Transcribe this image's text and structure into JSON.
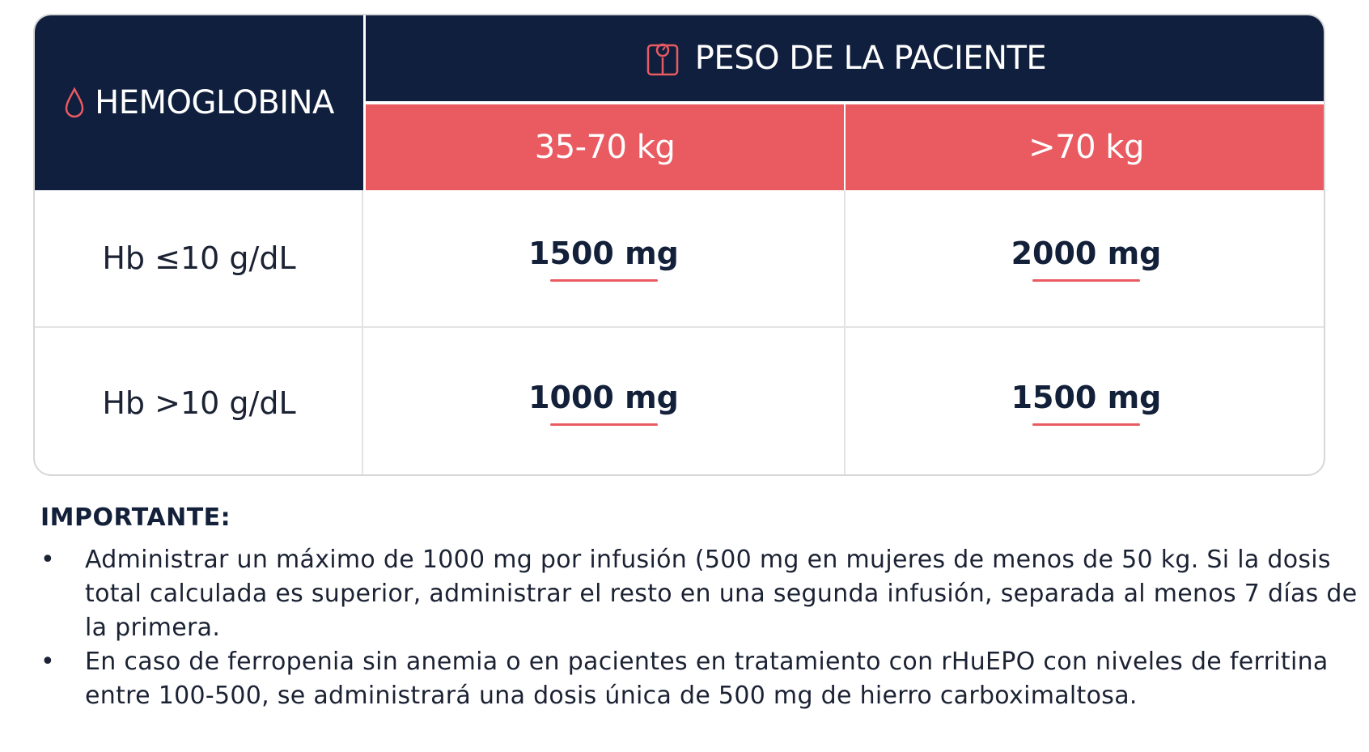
{
  "table": {
    "hemoglobin_header": "HEMOGLOBINA",
    "weight_header": "PESO DE LA PACIENTE",
    "weight_columns": [
      "35-70 kg",
      ">70 kg"
    ],
    "rows": [
      {
        "label": "Hb ≤10 g/dL",
        "doses": [
          "1500 mg",
          "2000 mg"
        ]
      },
      {
        "label": "Hb >10 g/dL",
        "doses": [
          "1000 mg",
          "1500 mg"
        ]
      }
    ]
  },
  "notes": {
    "title": "IMPORTANTE:",
    "items": [
      "Administrar un máximo de 1000 mg por infusión (500 mg en mujeres de menos de 50 kg. Si la dosis total calculada es superior, administrar el resto en una segunda infusión, separada al menos 7 días de la primera.",
      "En caso de ferropenia sin anemia o en pacientes en tratamiento con rHuEPO con niveles de ferritina entre 100-500, se administrará una dosis única de 500 mg de hierro carboximaltosa."
    ],
    "bullet": "•"
  },
  "colors": {
    "navy": "#0f1f3d",
    "coral": "#ea5a61",
    "border": "#d7d7d7"
  },
  "icons": [
    "drop-icon",
    "scale-icon"
  ]
}
